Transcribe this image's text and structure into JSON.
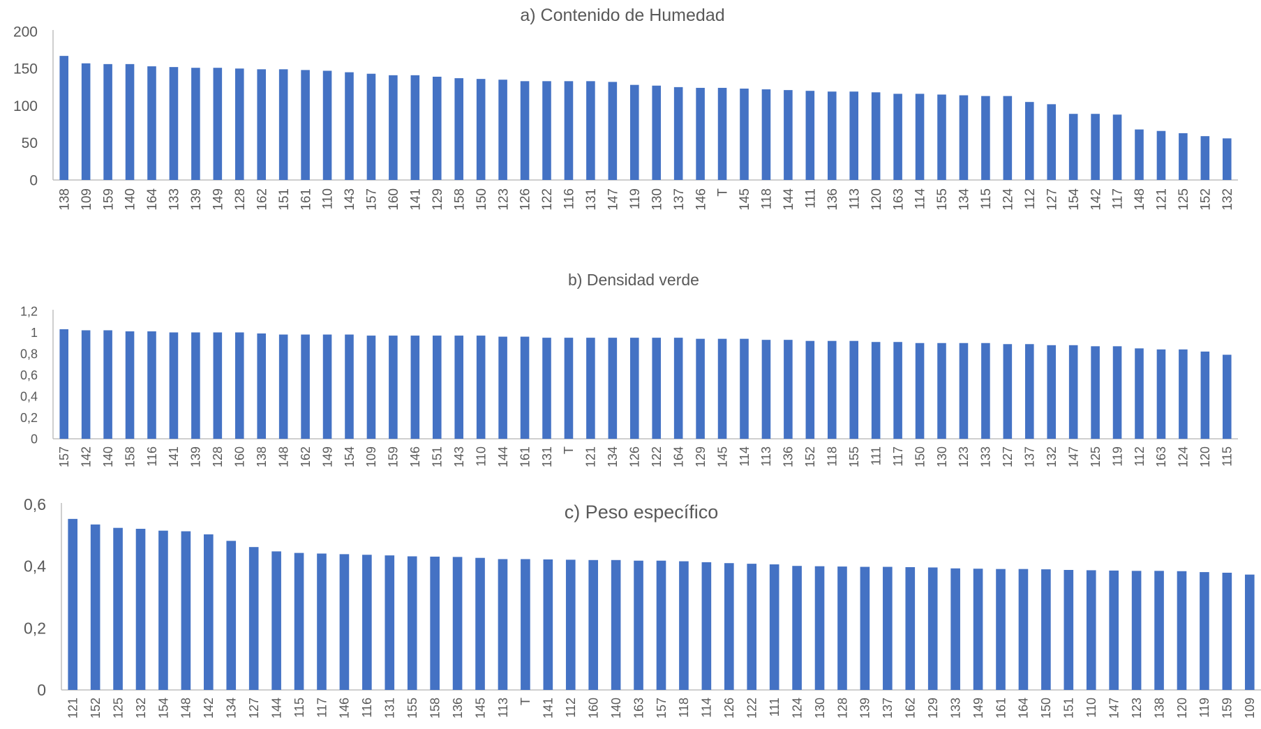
{
  "colors": {
    "bar": "#4472C4",
    "axis": "#BFBFBF",
    "text": "#595959"
  },
  "chart_data": [
    {
      "type": "bar",
      "title": "a) Contenido de Humedad",
      "xlabel": "",
      "ylabel": "",
      "ylim": [
        0,
        200
      ],
      "yticks": [
        "0",
        "50",
        "100",
        "150",
        "200"
      ],
      "grid": false,
      "categories": [
        "138",
        "109",
        "159",
        "140",
        "164",
        "133",
        "139",
        "149",
        "128",
        "162",
        "151",
        "161",
        "110",
        "143",
        "157",
        "160",
        "141",
        "129",
        "158",
        "150",
        "123",
        "126",
        "122",
        "116",
        "131",
        "147",
        "119",
        "130",
        "137",
        "146",
        "T",
        "145",
        "118",
        "144",
        "111",
        "136",
        "113",
        "120",
        "163",
        "114",
        "155",
        "134",
        "115",
        "124",
        "112",
        "127",
        "154",
        "142",
        "117",
        "148",
        "121",
        "125",
        "152",
        "132"
      ],
      "values": [
        167,
        157,
        156,
        156,
        153,
        152,
        151,
        151,
        150,
        149,
        149,
        148,
        147,
        145,
        143,
        141,
        141,
        139,
        137,
        136,
        135,
        133,
        133,
        133,
        133,
        132,
        128,
        127,
        125,
        124,
        124,
        123,
        122,
        121,
        120,
        119,
        119,
        118,
        116,
        116,
        115,
        114,
        113,
        113,
        105,
        102,
        89,
        89,
        88,
        68,
        66,
        63,
        59,
        56
      ]
    },
    {
      "type": "bar",
      "title": "b) Densidad verde",
      "xlabel": "",
      "ylabel": "",
      "ylim": [
        0,
        1.2
      ],
      "yticks": [
        "0",
        "0,2",
        "0,4",
        "0,6",
        "0,8",
        "1",
        "1,2"
      ],
      "grid": false,
      "categories": [
        "157",
        "142",
        "140",
        "158",
        "116",
        "141",
        "139",
        "128",
        "160",
        "138",
        "148",
        "162",
        "149",
        "154",
        "109",
        "159",
        "146",
        "151",
        "143",
        "110",
        "144",
        "161",
        "131",
        "T",
        "121",
        "134",
        "126",
        "122",
        "164",
        "129",
        "145",
        "114",
        "113",
        "136",
        "152",
        "118",
        "155",
        "111",
        "117",
        "150",
        "130",
        "123",
        "133",
        "127",
        "137",
        "132",
        "147",
        "125",
        "119",
        "112",
        "163",
        "124",
        "120",
        "115"
      ],
      "values": [
        1.03,
        1.02,
        1.02,
        1.01,
        1.01,
        1.0,
        1.0,
        1.0,
        1.0,
        0.99,
        0.98,
        0.98,
        0.98,
        0.98,
        0.97,
        0.97,
        0.97,
        0.97,
        0.97,
        0.97,
        0.96,
        0.96,
        0.95,
        0.95,
        0.95,
        0.95,
        0.95,
        0.95,
        0.95,
        0.94,
        0.94,
        0.94,
        0.93,
        0.93,
        0.92,
        0.92,
        0.92,
        0.91,
        0.91,
        0.9,
        0.9,
        0.9,
        0.9,
        0.89,
        0.89,
        0.88,
        0.88,
        0.87,
        0.87,
        0.85,
        0.84,
        0.84,
        0.82,
        0.79
      ]
    },
    {
      "type": "bar",
      "title": "c) Peso específico",
      "xlabel": "",
      "ylabel": "",
      "ylim": [
        0,
        0.6
      ],
      "yticks": [
        "0",
        "0,2",
        "0,4",
        "0,6"
      ],
      "grid": false,
      "categories": [
        "121",
        "152",
        "125",
        "132",
        "154",
        "148",
        "142",
        "134",
        "127",
        "144",
        "115",
        "117",
        "146",
        "116",
        "131",
        "155",
        "158",
        "136",
        "145",
        "113",
        "T",
        "141",
        "112",
        "160",
        "140",
        "163",
        "157",
        "118",
        "114",
        "126",
        "122",
        "111",
        "124",
        "130",
        "128",
        "139",
        "137",
        "162",
        "129",
        "133",
        "149",
        "161",
        "164",
        "150",
        "151",
        "110",
        "147",
        "123",
        "138",
        "120",
        "119",
        "159",
        "109"
      ],
      "values": [
        0.553,
        0.535,
        0.524,
        0.521,
        0.515,
        0.513,
        0.503,
        0.482,
        0.462,
        0.448,
        0.443,
        0.441,
        0.439,
        0.437,
        0.435,
        0.432,
        0.431,
        0.43,
        0.427,
        0.423,
        0.423,
        0.422,
        0.421,
        0.42,
        0.42,
        0.418,
        0.418,
        0.416,
        0.413,
        0.41,
        0.408,
        0.406,
        0.401,
        0.4,
        0.399,
        0.398,
        0.398,
        0.397,
        0.396,
        0.393,
        0.392,
        0.391,
        0.391,
        0.39,
        0.388,
        0.387,
        0.386,
        0.385,
        0.385,
        0.384,
        0.381,
        0.379,
        0.373
      ]
    }
  ]
}
